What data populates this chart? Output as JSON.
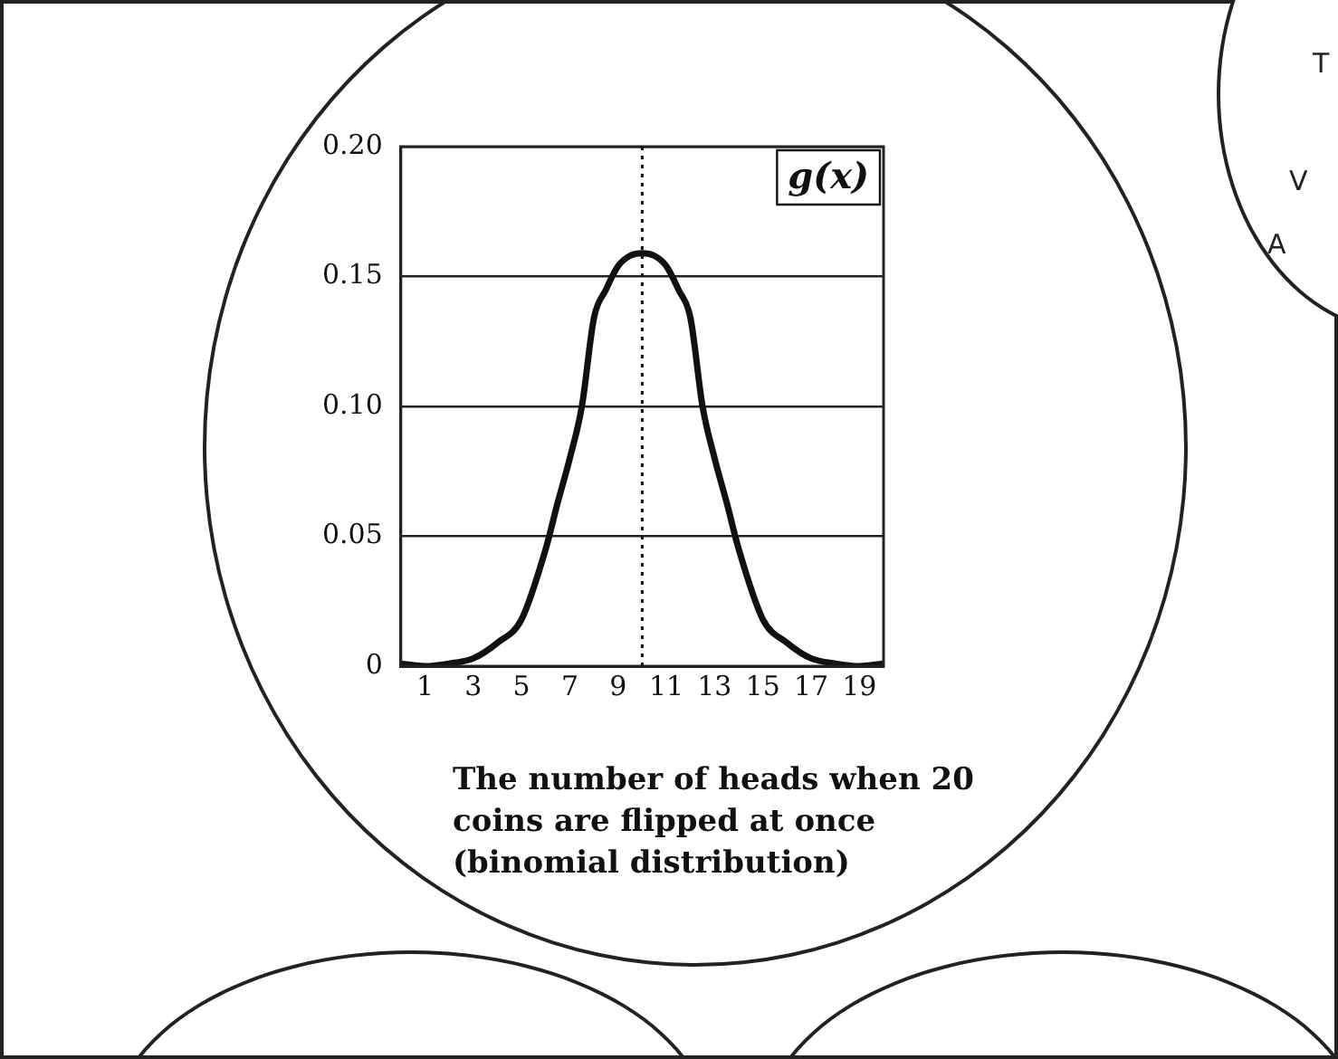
{
  "chart_data": {
    "type": "line",
    "x": [
      0,
      1,
      2,
      3,
      4,
      5,
      6,
      6.5,
      7,
      7.5,
      8,
      8.5,
      9,
      9.5,
      10,
      10.5,
      11,
      11.5,
      12,
      12.5,
      13,
      13.5,
      14,
      15,
      16,
      17,
      18,
      19,
      20
    ],
    "series": [
      {
        "name": "g(x)",
        "color": "#111111",
        "values": [
          0.001,
          0,
          0.001,
          0.003,
          0.009,
          0.018,
          0.045,
          0.063,
          0.08,
          0.1,
          0.134,
          0.145,
          0.154,
          0.158,
          0.159,
          0.158,
          0.154,
          0.145,
          0.134,
          0.1,
          0.08,
          0.063,
          0.045,
          0.018,
          0.009,
          0.003,
          0.001,
          0,
          0.001
        ]
      }
    ],
    "xlim": [
      0,
      20
    ],
    "xticks": [
      1,
      3,
      5,
      7,
      9,
      11,
      13,
      15,
      17,
      19
    ],
    "ylim": [
      0,
      0.2
    ],
    "yticks": [
      {
        "value": 0,
        "label": "0"
      },
      {
        "value": 0.05,
        "label": "0.05"
      },
      {
        "value": 0.1,
        "label": "0.10"
      },
      {
        "value": 0.15,
        "label": "0.15"
      },
      {
        "value": 0.2,
        "label": "0.20"
      }
    ],
    "grid": "y",
    "legend": false,
    "marker": "none",
    "line_style": "solid",
    "ref_lines": [
      {
        "axis": "x",
        "value": 10,
        "line_style": "dotted",
        "color": "#111111"
      }
    ],
    "annotations": [
      "The number of heads when 20 coins are flipped at once (binomial distribution)",
      "T",
      "V",
      "A"
    ]
  }
}
